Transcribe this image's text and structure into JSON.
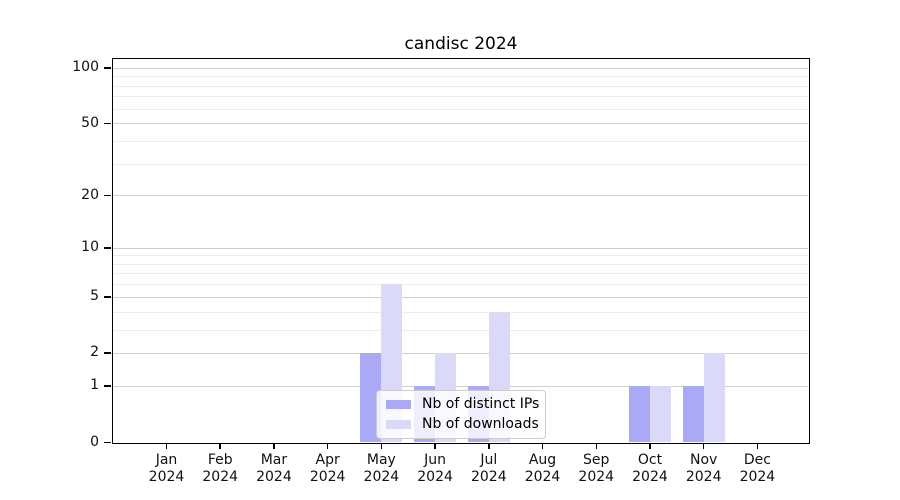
{
  "title": "candisc 2024",
  "chart_data": {
    "type": "bar",
    "title": "candisc 2024",
    "categories": [
      {
        "month": "Jan",
        "year": "2024"
      },
      {
        "month": "Feb",
        "year": "2024"
      },
      {
        "month": "Mar",
        "year": "2024"
      },
      {
        "month": "Apr",
        "year": "2024"
      },
      {
        "month": "May",
        "year": "2024"
      },
      {
        "month": "Jun",
        "year": "2024"
      },
      {
        "month": "Jul",
        "year": "2024"
      },
      {
        "month": "Aug",
        "year": "2024"
      },
      {
        "month": "Sep",
        "year": "2024"
      },
      {
        "month": "Oct",
        "year": "2024"
      },
      {
        "month": "Nov",
        "year": "2024"
      },
      {
        "month": "Dec",
        "year": "2024"
      }
    ],
    "series": [
      {
        "name": "Nb of distinct IPs",
        "color": "#a9a9f5",
        "values": [
          0,
          0,
          0,
          0,
          2,
          1,
          1,
          0,
          0,
          1,
          1,
          0
        ]
      },
      {
        "name": "Nb of downloads",
        "color": "#dadaf8",
        "values": [
          0,
          0,
          0,
          0,
          6,
          2,
          4,
          0,
          0,
          1,
          2,
          0
        ]
      }
    ],
    "xlabel": "",
    "ylabel": "",
    "y_axis": {
      "scale": "log(1+y)",
      "major_ticks": [
        0,
        1,
        2,
        5,
        10,
        20,
        50,
        100
      ],
      "minor_gridlines": [
        3,
        4,
        6,
        7,
        8,
        9,
        30,
        40,
        60,
        70,
        80,
        90
      ],
      "ylim_top": 113
    },
    "grid": "on",
    "legend_position": "lower center"
  },
  "colors": {
    "major_grid": "#cfcfcf",
    "minor_grid": "#ececec",
    "spine": "#000000",
    "background": "#ffffff"
  }
}
